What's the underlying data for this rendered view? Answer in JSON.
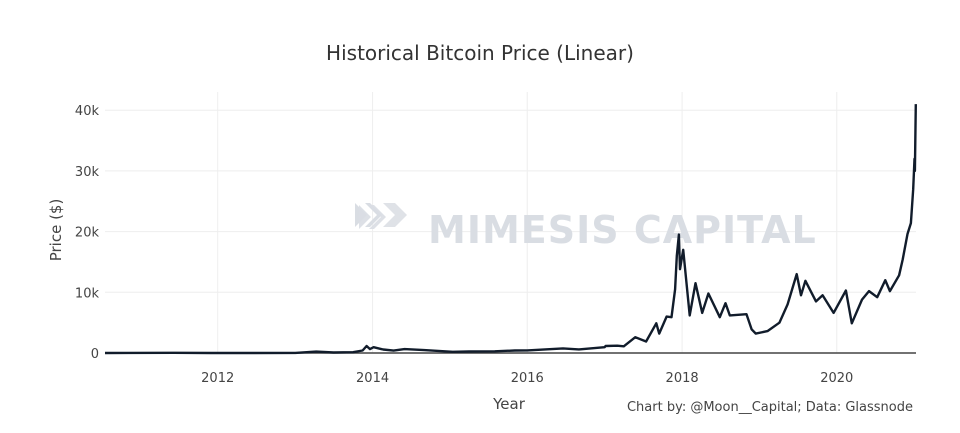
{
  "chart_data": {
    "type": "line",
    "title": "Historical Bitcoin Price (Linear)",
    "xlabel": "Year",
    "ylabel": "Price ($)",
    "xlim": [
      "2010-07-18",
      "2021-01-09"
    ],
    "ylim": [
      0,
      43000
    ],
    "x_ticks": [
      "2012",
      "2014",
      "2016",
      "2018",
      "2020"
    ],
    "y_ticks": [
      {
        "value": 0,
        "label": "0"
      },
      {
        "value": 10000,
        "label": "10k"
      },
      {
        "value": 20000,
        "label": "20k"
      },
      {
        "value": 30000,
        "label": "30k"
      },
      {
        "value": 40000,
        "label": "40k"
      }
    ],
    "grid": true,
    "legend": "none",
    "line_color": "#111c2b",
    "series": [
      {
        "points": [
          [
            "2010-07-18",
            0.1
          ],
          [
            "2011-06-08",
            30
          ],
          [
            "2011-12-01",
            3
          ],
          [
            "2012-06-01",
            6
          ],
          [
            "2013-01-01",
            13
          ],
          [
            "2013-04-10",
            230
          ],
          [
            "2013-07-01",
            90
          ],
          [
            "2013-10-01",
            130
          ],
          [
            "2013-11-15",
            420
          ],
          [
            "2013-12-04",
            1150
          ],
          [
            "2013-12-20",
            650
          ],
          [
            "2014-01-06",
            950
          ],
          [
            "2014-02-20",
            580
          ],
          [
            "2014-04-10",
            400
          ],
          [
            "2014-06-01",
            650
          ],
          [
            "2014-09-01",
            480
          ],
          [
            "2015-01-14",
            190
          ],
          [
            "2015-04-01",
            250
          ],
          [
            "2015-08-01",
            280
          ],
          [
            "2015-11-04",
            420
          ],
          [
            "2016-01-01",
            430
          ],
          [
            "2016-06-18",
            750
          ],
          [
            "2016-09-01",
            600
          ],
          [
            "2016-12-31",
            960
          ],
          [
            "2017-01-05",
            1150
          ],
          [
            "2017-03-01",
            1200
          ],
          [
            "2017-04-01",
            1100
          ],
          [
            "2017-05-25",
            2600
          ],
          [
            "2017-07-15",
            1900
          ],
          [
            "2017-09-01",
            4900
          ],
          [
            "2017-09-15",
            3200
          ],
          [
            "2017-10-20",
            6000
          ],
          [
            "2017-11-12",
            5900
          ],
          [
            "2017-11-29",
            10500
          ],
          [
            "2017-12-07",
            16000
          ],
          [
            "2017-12-17",
            19500
          ],
          [
            "2017-12-22",
            13800
          ],
          [
            "2018-01-06",
            17000
          ],
          [
            "2018-02-06",
            6200
          ],
          [
            "2018-03-05",
            11500
          ],
          [
            "2018-04-06",
            6600
          ],
          [
            "2018-05-05",
            9800
          ],
          [
            "2018-06-28",
            5900
          ],
          [
            "2018-07-25",
            8200
          ],
          [
            "2018-08-14",
            6200
          ],
          [
            "2018-11-01",
            6400
          ],
          [
            "2018-11-25",
            3900
          ],
          [
            "2018-12-15",
            3200
          ],
          [
            "2019-02-08",
            3600
          ],
          [
            "2019-04-05",
            5000
          ],
          [
            "2019-05-14",
            8000
          ],
          [
            "2019-06-26",
            13000
          ],
          [
            "2019-07-16",
            9500
          ],
          [
            "2019-08-06",
            11900
          ],
          [
            "2019-09-25",
            8500
          ],
          [
            "2019-10-26",
            9500
          ],
          [
            "2019-12-17",
            6600
          ],
          [
            "2020-02-13",
            10300
          ],
          [
            "2020-03-12",
            4900
          ],
          [
            "2020-04-29",
            8800
          ],
          [
            "2020-06-01",
            10200
          ],
          [
            "2020-07-10",
            9200
          ],
          [
            "2020-08-17",
            12000
          ],
          [
            "2020-09-08",
            10200
          ],
          [
            "2020-10-21",
            12800
          ],
          [
            "2020-11-07",
            15400
          ],
          [
            "2020-11-30",
            19600
          ],
          [
            "2020-12-16",
            21400
          ],
          [
            "2020-12-27",
            27000
          ],
          [
            "2021-01-02",
            32000
          ],
          [
            "2021-01-04",
            30000
          ],
          [
            "2021-01-08",
            41000
          ]
        ]
      }
    ]
  },
  "watermark": {
    "text": "MIMESIS CAPITAL",
    "icon": "mimesis-logo-icon",
    "color": "#d9dde3"
  },
  "credit": "Chart by: @Moon__Capital; Data: Glassnode",
  "colors": {
    "grid": "#eeeeee",
    "axis": "#444444",
    "text": "#444444"
  }
}
